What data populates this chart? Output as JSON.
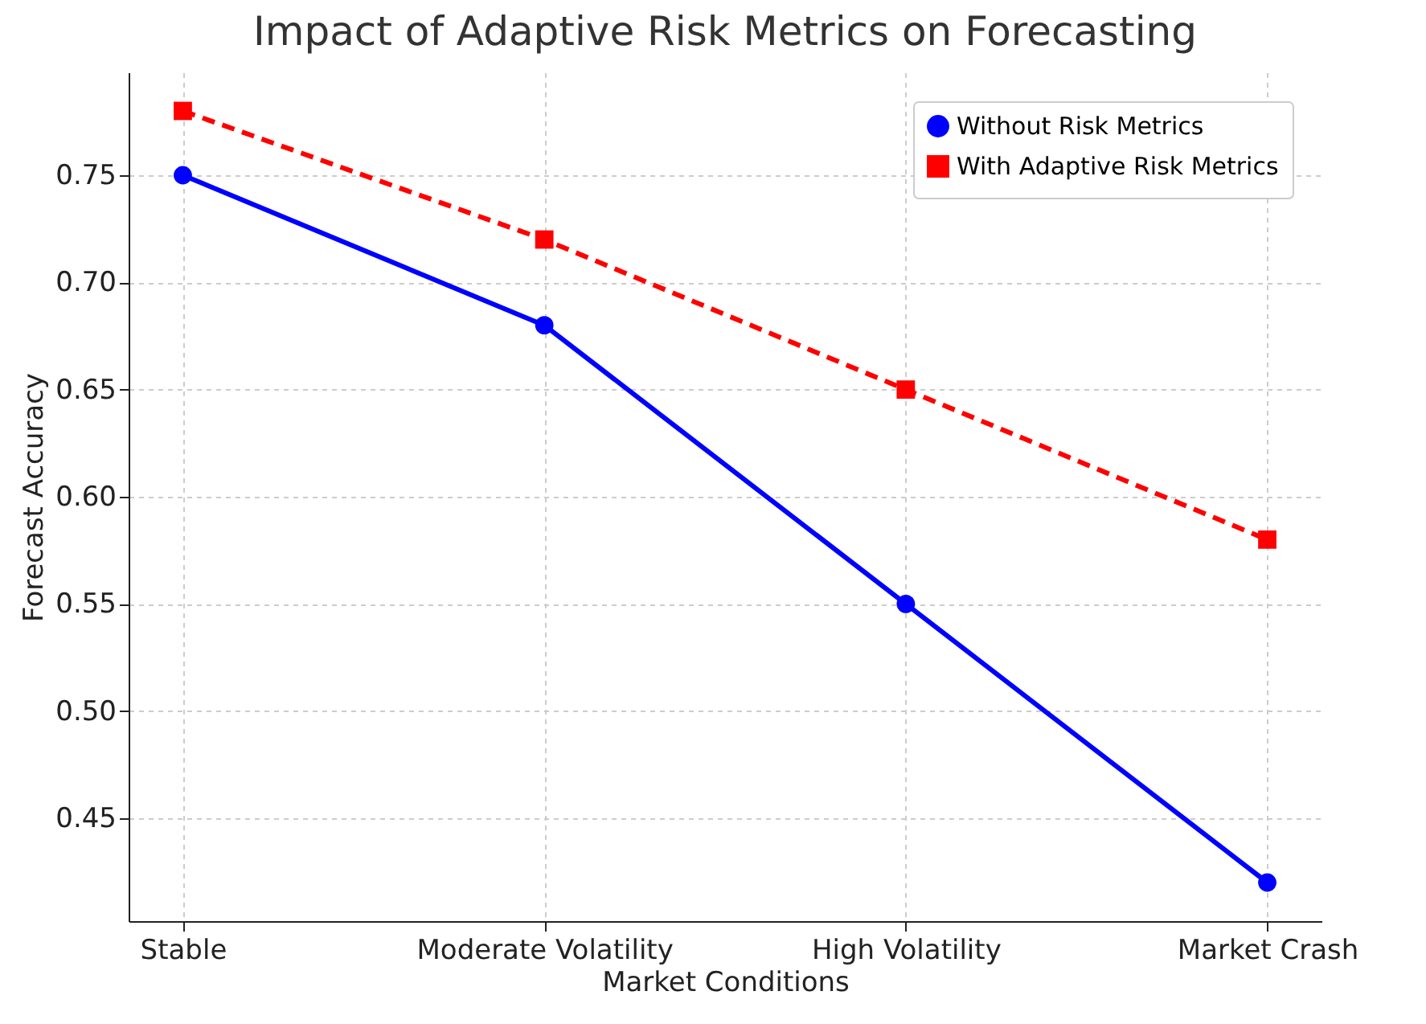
{
  "chart_data": {
    "type": "line",
    "title": "Impact of Adaptive Risk Metrics on Forecasting",
    "xlabel": "Market Conditions",
    "ylabel": "Forecast Accuracy",
    "categories": [
      "Stable",
      "Moderate Volatility",
      "High Volatility",
      "Market Crash"
    ],
    "series": [
      {
        "name": "Without Risk Metrics",
        "color": "#0000ff",
        "marker": "circle",
        "line_style": "solid",
        "values": [
          0.75,
          0.68,
          0.55,
          0.42
        ]
      },
      {
        "name": "With Adaptive Risk Metrics",
        "color": "#ff0000",
        "marker": "square",
        "line_style": "dashed",
        "values": [
          0.78,
          0.72,
          0.65,
          0.58
        ]
      }
    ],
    "ylim": [
      0.402,
      0.798
    ],
    "yticks": [
      0.45,
      {
        "value": 0.5,
        "label": "0.50"
      },
      0.55,
      {
        "value": 0.6,
        "label": "0.60"
      },
      0.65,
      {
        "value": 0.7,
        "label": "0.70"
      },
      0.75
    ],
    "grid": true,
    "legend": "top right"
  }
}
